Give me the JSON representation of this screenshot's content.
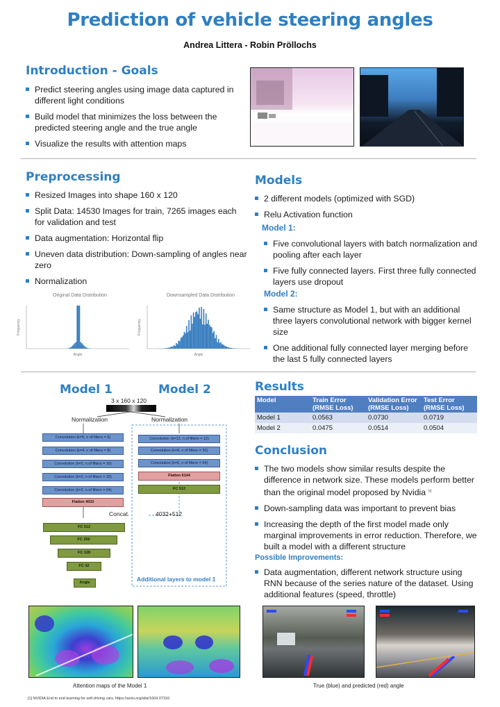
{
  "header": {
    "title": "Prediction of vehicle steering angles",
    "authors": "Andrea Littera - Robin Pröllochs"
  },
  "intro": {
    "heading": "Introduction - Goals",
    "bullets": [
      "Predict steering angles using image data captured in different light conditions",
      "Build model that minimizes the loss between the predicted steering angle and the true angle",
      "Visualize the results with attention maps"
    ]
  },
  "preprocessing": {
    "heading": "Preprocessing",
    "bullets": [
      "Resized Images into shape 160 x 120",
      "Split Data: 14530 Images for train, 7265 images each for validation and test",
      "Data augmentation: Horizontal flip",
      "Uneven data distribution: Down-sampling of angles near zero",
      "Normalization"
    ],
    "hist1": {
      "title": "Original Data Distribution",
      "xlabel": "Angle",
      "ylabel": "Frequency"
    },
    "hist2": {
      "title": "Downsampled Data Distribution",
      "xlabel": "Angle",
      "ylabel": "Frequency"
    }
  },
  "models": {
    "heading": "Models",
    "bullets": [
      "2 different models (optimized with SGD)",
      "Relu Activation function"
    ],
    "model1_heading": "Model 1:",
    "model1_bullets": [
      "Five convolutional layers with batch normalization and pooling after each layer",
      "Five fully connected layers. First three fully connected layers use dropout"
    ],
    "model2_heading": "Model 2:",
    "model2_bullets": [
      "Same structure as Model 1, but with an additional three layers convolutional network with bigger kernel size",
      "One additional fully connected layer merging before the last 5 fully connected layers"
    ]
  },
  "diagram": {
    "model1_label": "Model 1",
    "model2_label": "Model 2",
    "input_label": "3 x 160 x 120",
    "norm_left": "Normalization",
    "norm_right": "Normalization",
    "conv_left": [
      "Convolution (k=5, n of filters = 6)",
      "Convolution (k=4, n of filters = 8)",
      "Convolution (k=2, n of filters = 16)",
      "Convolution (k=2, n of filters = 32)",
      "Convolution (k=2, n of filters = 64)"
    ],
    "flatten_left": "Flatten 4032",
    "conv_right": [
      "Convolution (k=12, n of filters = 12)",
      "Convolution (k=8, n of filters = 32)",
      "Convolution (k=6, n of filters = 64)"
    ],
    "flatten_right": "Flatten 6144",
    "fc_right": "FC 512",
    "concat_label": "Concat.",
    "concat_value": "4032+512",
    "fc_stack": [
      "FC 512",
      "FC 256",
      "FC 128",
      "FC 32"
    ],
    "angle_label": "Angle",
    "additional_label": "Additional layers to model 1"
  },
  "results": {
    "heading": "Results",
    "columns": [
      "Model",
      "Train Error (RMSE Loss)",
      "Validation Error (RMSE Loss)",
      "Test Error (RMSE Loss)"
    ],
    "rows": [
      [
        "Model 1",
        "0.0563",
        "0.0730",
        "0.0719"
      ],
      [
        "Model 2",
        "0.0475",
        "0.0514",
        "0.0504"
      ]
    ]
  },
  "conclusion": {
    "heading": "Conclusion",
    "bullet1": "The two models show similar results despite the difference in network size. These models perform better than the original model proposed by Nvidia",
    "bullet1_ref": "[1]",
    "bullet2": "Down-sampling data was important to prevent bias",
    "bullet3": "Increasing the depth of the first model made only marginal improvements in error reduction. Therefore, we built a model with a different structure",
    "improvements_heading": "Possible Improvements:",
    "improvements_bullet": "Data augmentation, different network structure using RNN because of the series nature of the dataset. Using additional features (speed, throttle)"
  },
  "captions": {
    "attention": "Attention maps of the Model 1",
    "predictions": "True (blue) and predicted (red) angle"
  },
  "footnote": "[1] NVIDIA End to end learning for self-driving cars. https://arxiv.org/abs/1604.07316.",
  "colors": {
    "accent": "#2f7fc1",
    "conv": "#6d93cb",
    "flatten": "#e3a0a0",
    "fc": "#7f9a3f",
    "table_header": "#4f7fc1"
  }
}
